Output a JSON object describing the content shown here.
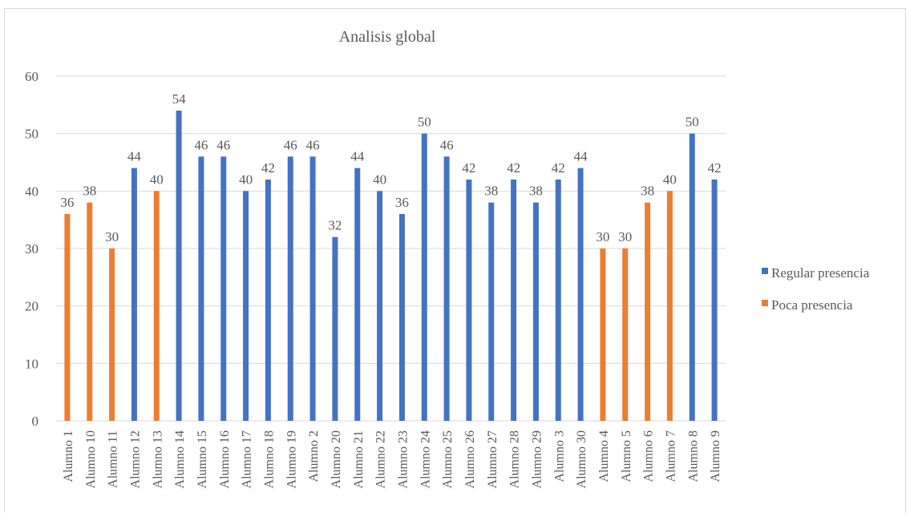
{
  "chart_data": {
    "type": "bar",
    "title": "Analisis global",
    "xlabel": "",
    "ylabel": "",
    "ylim": [
      0,
      60
    ],
    "yticks": [
      0,
      10,
      20,
      30,
      40,
      50,
      60
    ],
    "grid": true,
    "legend_position": "right",
    "categories": [
      "Alumno 1",
      "Alumno 10",
      "Alumno 11",
      "Alumno 12",
      "Alumno 13",
      "Alumno 14",
      "Alumno 15",
      "Alumno 16",
      "Alumno 17",
      "Alumno 18",
      "Alumno 19",
      "Alumno 2",
      "Alumno 20",
      "Alumno 21",
      "Alumno 22",
      "Alumno 23",
      "Alumno 24",
      "Alumno 25",
      "Alumno 26",
      "Alumno 27",
      "Alumno 28",
      "Alumno 29",
      "Alumno 3",
      "Alumno 30",
      "Alumno 4",
      "Alumno 5",
      "Alumno 6",
      "Alumno 7",
      "Alumno 8",
      "Alumno 9"
    ],
    "series": [
      {
        "name": "Regular presencia",
        "color": "#4472c4",
        "values": [
          null,
          null,
          null,
          44,
          null,
          54,
          46,
          46,
          40,
          42,
          46,
          46,
          32,
          44,
          40,
          36,
          50,
          46,
          42,
          38,
          42,
          38,
          42,
          44,
          null,
          null,
          null,
          null,
          50,
          42
        ]
      },
      {
        "name": "Poca presencia",
        "color": "#ed7d31",
        "values": [
          36,
          38,
          30,
          null,
          40,
          null,
          null,
          null,
          null,
          null,
          null,
          null,
          null,
          null,
          null,
          null,
          null,
          null,
          null,
          null,
          null,
          null,
          null,
          null,
          30,
          30,
          38,
          40,
          null,
          null
        ]
      }
    ]
  }
}
